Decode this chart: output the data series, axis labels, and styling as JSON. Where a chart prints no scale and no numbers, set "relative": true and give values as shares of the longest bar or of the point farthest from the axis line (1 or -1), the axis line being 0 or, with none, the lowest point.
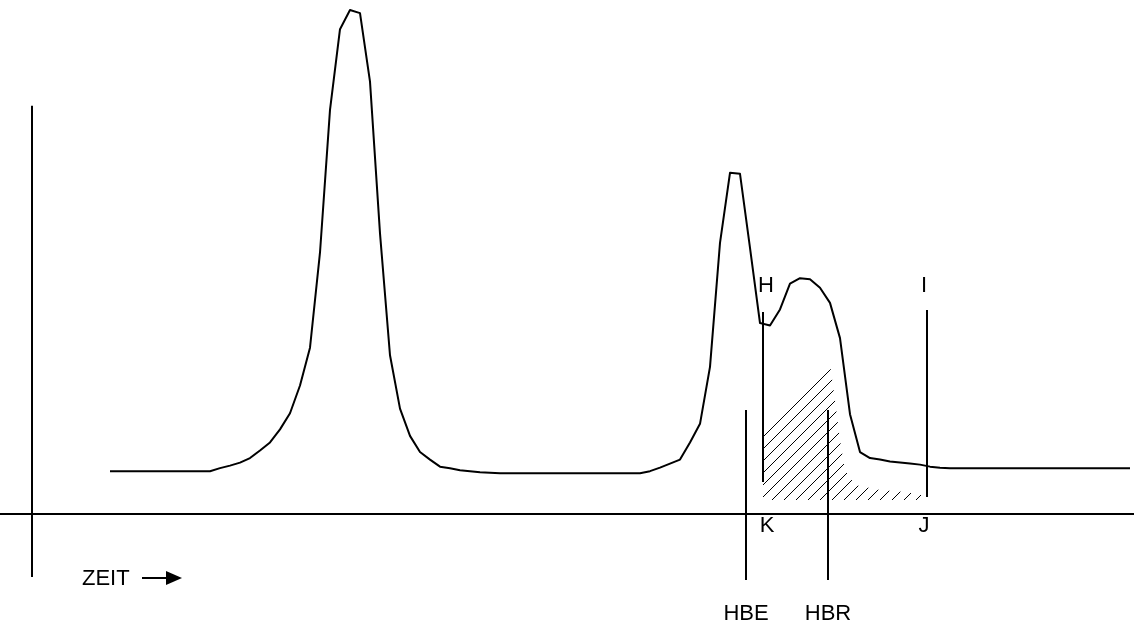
{
  "chart_data": {
    "type": "line",
    "relative": true,
    "xlabel": "ZEIT",
    "grid": false,
    "legend": false,
    "marker": "none",
    "line_style": "solid",
    "categories": [
      null,
      null,
      null,
      null,
      null,
      null,
      null,
      null,
      null,
      null,
      null,
      null,
      null,
      null,
      null,
      null,
      null,
      null,
      null,
      null,
      null,
      null,
      null,
      null,
      null,
      null,
      null,
      null,
      null,
      null,
      null,
      null,
      null,
      null,
      null,
      null,
      null,
      null,
      null,
      null,
      null,
      null,
      null,
      null,
      null,
      null,
      null,
      null,
      null,
      null,
      null,
      null,
      null,
      null,
      null,
      null,
      null,
      null,
      null,
      null,
      null,
      null,
      null,
      null,
      null,
      null,
      null,
      null,
      null,
      null,
      null,
      null,
      null,
      null,
      null,
      null,
      null,
      null,
      null,
      null,
      null,
      null,
      null,
      null,
      null,
      null,
      null,
      null,
      null,
      null,
      null,
      null,
      null,
      null,
      null,
      null,
      null,
      null,
      null,
      null,
      null,
      null,
      null,
      null,
      null,
      null,
      null,
      null,
      null,
      null,
      null,
      null,
      null
    ],
    "series": [
      {
        "color": "#000000",
        "values": [
          null,
          null,
          null,
          null,
          null,
          null,
          null,
          null,
          null,
          null,
          0.085,
          0.085,
          0.085,
          0.085,
          0.085,
          0.085,
          0.085,
          0.085,
          0.085,
          0.085,
          0.085,
          0.091,
          0.096,
          0.102,
          0.111,
          0.126,
          0.142,
          0.168,
          0.2,
          0.255,
          0.33,
          0.519,
          0.802,
          0.962,
          1,
          0.994,
          0.858,
          0.557,
          0.315,
          0.209,
          0.155,
          0.123,
          0.108,
          0.094,
          0.091,
          0.087,
          0.085,
          0.083,
          0.082,
          0.081,
          0.081,
          0.081,
          0.081,
          0.081,
          0.081,
          0.081,
          0.081,
          0.081,
          0.081,
          0.081,
          0.081,
          0.081,
          0.081,
          0.081,
          0.085,
          0.092,
          0.1,
          0.108,
          0.142,
          0.179,
          0.292,
          0.538,
          0.677,
          0.675,
          0.528,
          0.379,
          0.374,
          0.406,
          0.457,
          0.468,
          0.466,
          0.449,
          0.419,
          0.349,
          0.198,
          0.123,
          0.111,
          0.108,
          0.104,
          0.102,
          0.1,
          0.098,
          0.094,
          0.092,
          0.091,
          0.091,
          0.091,
          0.091,
          0.091,
          0.091,
          0.091,
          0.091,
          0.091,
          0.091,
          0.091,
          0.091,
          0.091,
          0.091,
          0.091,
          0.091,
          0.091,
          0.091,
          0.091
        ]
      }
    ],
    "annotations": [
      "HBE",
      "HBR",
      "H",
      "I",
      "K",
      "J"
    ]
  }
}
